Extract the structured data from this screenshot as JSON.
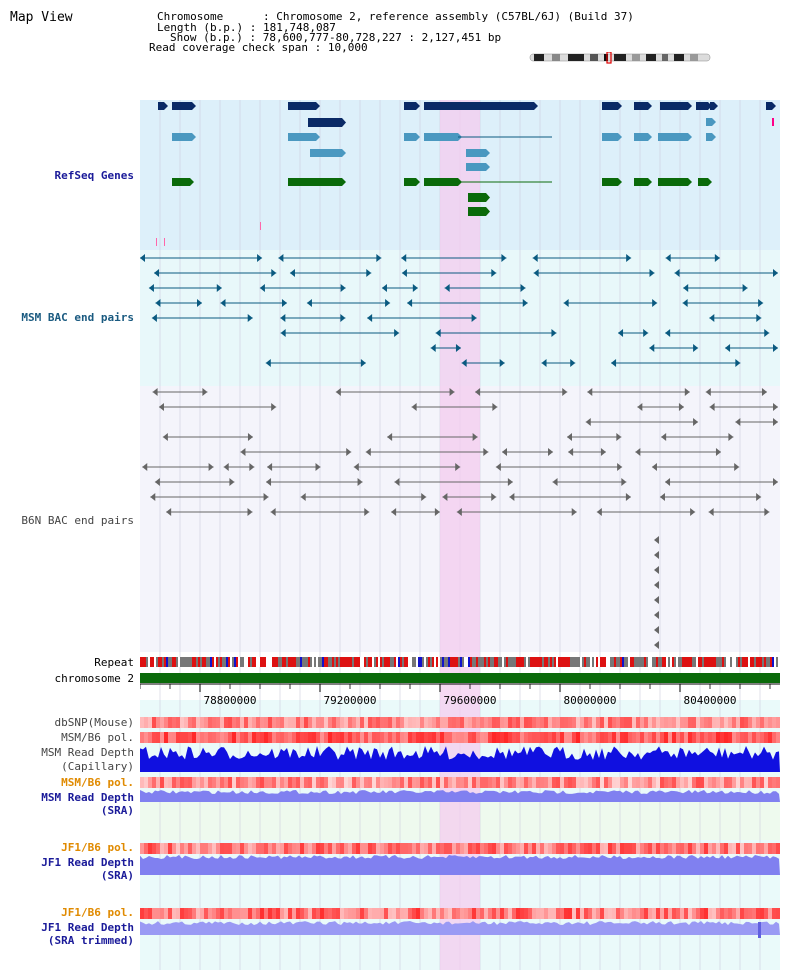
{
  "window": {
    "title": "Map View"
  },
  "header": {
    "chromosome_label": "Chromosome",
    "chromosome_value": "Chromosome 2, reference assembly (C57BL/6J) (Build 37)",
    "length_label": "Length (b.p.)",
    "length_value": "181,748,087",
    "show_label": "Show (b.p.)",
    "show_value": "78,600,777-80,728,227 : 2,127,451 bp",
    "span_label": "Read coverage check span",
    "span_value": "10,000"
  },
  "tracks": {
    "refseq": "RefSeq Genes",
    "msm_bac": "MSM BAC end pairs",
    "b6n_bac": "B6N BAC end pairs",
    "repeat": "Repeat",
    "chromosome": "chromosome 2",
    "dbsnp": "dbSNP(Mouse)",
    "msm_b6_pol_1": "MSM/B6 pol.",
    "msm_read_depth_cap_1": "MSM Read Depth",
    "msm_read_depth_cap_2": "(Capillary)",
    "msm_b6_pol_2": "MSM/B6 pol.",
    "msm_read_depth_sra_1": "MSM Read Depth",
    "msm_read_depth_sra_2": "(SRA)",
    "jf1_b6_pol_1": "JF1/B6 pol.",
    "jf1_read_depth_1": "JF1 Read Depth",
    "jf1_read_depth_2": "(SRA)",
    "jf1_b6_pol_2": "JF1/B6 pol.",
    "jf1_read_depth_trim_1": "JF1 Read Depth",
    "jf1_read_depth_trim_2": "(SRA trimmed)"
  },
  "axis": {
    "ticks": [
      "78800000",
      "79200000",
      "79600000",
      "80000000",
      "80400000"
    ]
  },
  "colors": {
    "refseq_bg": "#ddf0fa",
    "msm_bg": "#e8f8fa",
    "b6n_bg": "#f4f4fb",
    "highlight": "#f6d6f2",
    "navy_gene": "#0a2a66",
    "teal_gene": "#4a98c0",
    "green_gene": "#0a6a0a",
    "msm_pair": "#0a5a80",
    "b6n_pair": "#666666",
    "chromosome_bar": "#0a6a0a",
    "depth_capillary": "#1010e0",
    "depth_sra": "#8080f0"
  }
}
